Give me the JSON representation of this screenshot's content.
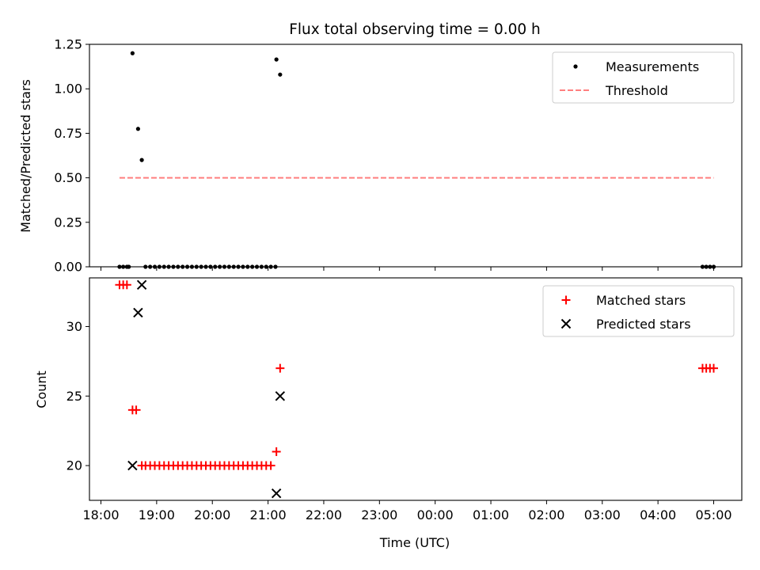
{
  "chart_data": [
    {
      "type": "scatter",
      "title": "Flux total observing time = 0.00 h",
      "xlabel": "",
      "ylabel": "Matched/Predicted stars",
      "xlim": [
        "18:00",
        "05:00"
      ],
      "ylim": [
        0,
        1.25
      ],
      "yticks": [
        "0.00",
        "0.25",
        "0.50",
        "0.75",
        "1.00",
        "1.25"
      ],
      "legend_placement": "upper-right",
      "series": [
        {
          "name": "Measurements",
          "marker": "dot",
          "color": "#000000",
          "points": [
            {
              "x": "18:20",
              "y": 0
            },
            {
              "x": "18:24",
              "y": 0
            },
            {
              "x": "18:28",
              "y": 0
            },
            {
              "x": "18:30",
              "y": 0
            },
            {
              "x": "18:34",
              "y": 1.2
            },
            {
              "x": "18:40",
              "y": 0.775
            },
            {
              "x": "18:44",
              "y": 0.6
            },
            {
              "x": "18:48",
              "y": 0
            },
            {
              "x": "18:53",
              "y": 0
            },
            {
              "x": "18:58",
              "y": 0
            },
            {
              "x": "19:03",
              "y": 0
            },
            {
              "x": "19:08",
              "y": 0
            },
            {
              "x": "19:13",
              "y": 0
            },
            {
              "x": "19:18",
              "y": 0
            },
            {
              "x": "19:23",
              "y": 0
            },
            {
              "x": "19:28",
              "y": 0
            },
            {
              "x": "19:33",
              "y": 0
            },
            {
              "x": "19:38",
              "y": 0
            },
            {
              "x": "19:43",
              "y": 0
            },
            {
              "x": "19:48",
              "y": 0
            },
            {
              "x": "19:53",
              "y": 0
            },
            {
              "x": "19:58",
              "y": 0
            },
            {
              "x": "20:03",
              "y": 0
            },
            {
              "x": "20:08",
              "y": 0
            },
            {
              "x": "20:13",
              "y": 0
            },
            {
              "x": "20:18",
              "y": 0
            },
            {
              "x": "20:23",
              "y": 0
            },
            {
              "x": "20:28",
              "y": 0
            },
            {
              "x": "20:33",
              "y": 0
            },
            {
              "x": "20:38",
              "y": 0
            },
            {
              "x": "20:43",
              "y": 0
            },
            {
              "x": "20:48",
              "y": 0
            },
            {
              "x": "20:53",
              "y": 0
            },
            {
              "x": "20:58",
              "y": 0
            },
            {
              "x": "21:03",
              "y": 0
            },
            {
              "x": "21:08",
              "y": 0
            },
            {
              "x": "21:09",
              "y": 1.165
            },
            {
              "x": "21:13",
              "y": 1.08
            },
            {
              "x": "04:48",
              "y": 0
            },
            {
              "x": "04:52",
              "y": 0
            },
            {
              "x": "04:56",
              "y": 0
            },
            {
              "x": "05:00",
              "y": 0
            }
          ]
        },
        {
          "name": "Threshold",
          "marker": "dashed-line",
          "color": "#ff7f7f",
          "points": [
            {
              "x": "18:20",
              "y": 0.5
            },
            {
              "x": "05:00",
              "y": 0.5
            }
          ]
        }
      ]
    },
    {
      "type": "scatter",
      "title": "",
      "xlabel": "Time (UTC)",
      "ylabel": "Count",
      "xlim": [
        "18:00",
        "05:00"
      ],
      "ylim": [
        17.5,
        33.5
      ],
      "yticks": [
        "20",
        "25",
        "30"
      ],
      "xticks": [
        "18:00",
        "19:00",
        "20:00",
        "21:00",
        "22:00",
        "23:00",
        "00:00",
        "01:00",
        "02:00",
        "03:00",
        "04:00",
        "05:00"
      ],
      "legend_placement": "upper-right",
      "series": [
        {
          "name": "Matched stars",
          "marker": "plus",
          "color": "#ff0000",
          "points": [
            {
              "x": "18:20",
              "y": 33
            },
            {
              "x": "18:24",
              "y": 33
            },
            {
              "x": "18:28",
              "y": 33
            },
            {
              "x": "18:34",
              "y": 24
            },
            {
              "x": "18:38",
              "y": 24
            },
            {
              "x": "18:44",
              "y": 20
            },
            {
              "x": "18:48",
              "y": 20
            },
            {
              "x": "18:53",
              "y": 20
            },
            {
              "x": "18:58",
              "y": 20
            },
            {
              "x": "19:03",
              "y": 20
            },
            {
              "x": "19:08",
              "y": 20
            },
            {
              "x": "19:13",
              "y": 20
            },
            {
              "x": "19:18",
              "y": 20
            },
            {
              "x": "19:23",
              "y": 20
            },
            {
              "x": "19:28",
              "y": 20
            },
            {
              "x": "19:33",
              "y": 20
            },
            {
              "x": "19:38",
              "y": 20
            },
            {
              "x": "19:43",
              "y": 20
            },
            {
              "x": "19:48",
              "y": 20
            },
            {
              "x": "19:53",
              "y": 20
            },
            {
              "x": "19:58",
              "y": 20
            },
            {
              "x": "20:03",
              "y": 20
            },
            {
              "x": "20:08",
              "y": 20
            },
            {
              "x": "20:13",
              "y": 20
            },
            {
              "x": "20:18",
              "y": 20
            },
            {
              "x": "20:23",
              "y": 20
            },
            {
              "x": "20:28",
              "y": 20
            },
            {
              "x": "20:33",
              "y": 20
            },
            {
              "x": "20:38",
              "y": 20
            },
            {
              "x": "20:43",
              "y": 20
            },
            {
              "x": "20:48",
              "y": 20
            },
            {
              "x": "20:53",
              "y": 20
            },
            {
              "x": "20:58",
              "y": 20
            },
            {
              "x": "21:03",
              "y": 20
            },
            {
              "x": "21:09",
              "y": 21
            },
            {
              "x": "21:13",
              "y": 27
            },
            {
              "x": "04:48",
              "y": 27
            },
            {
              "x": "04:52",
              "y": 27
            },
            {
              "x": "04:56",
              "y": 27
            },
            {
              "x": "05:00",
              "y": 27
            }
          ]
        },
        {
          "name": "Predicted stars",
          "marker": "cross",
          "color": "#000000",
          "points": [
            {
              "x": "18:44",
              "y": 33
            },
            {
              "x": "18:40",
              "y": 31
            },
            {
              "x": "18:34",
              "y": 20
            },
            {
              "x": "21:09",
              "y": 18
            },
            {
              "x": "21:13",
              "y": 25
            }
          ]
        }
      ]
    }
  ]
}
